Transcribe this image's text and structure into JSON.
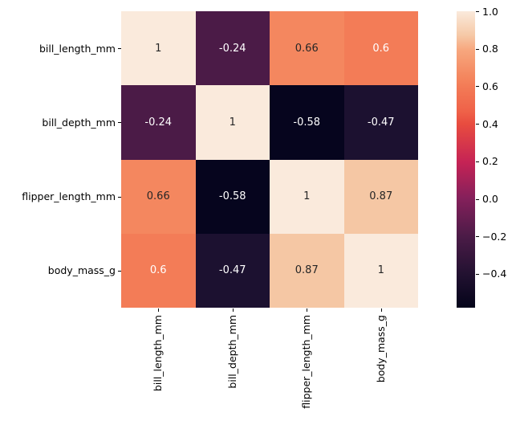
{
  "figure": {
    "background_color": "#ffffff",
    "title": ""
  },
  "chart_data": {
    "type": "heatmap",
    "title": "",
    "xlabel": "",
    "ylabel": "",
    "categories": [
      "bill_length_mm",
      "bill_depth_mm",
      "flipper_length_mm",
      "body_mass_g"
    ],
    "matrix": [
      [
        1,
        -0.24,
        0.66,
        0.6
      ],
      [
        -0.24,
        1,
        -0.58,
        -0.47
      ],
      [
        0.66,
        -0.58,
        1,
        0.87
      ],
      [
        0.6,
        -0.47,
        0.87,
        1
      ]
    ],
    "cell_labels": [
      [
        "1",
        "-0.24",
        "0.66",
        "0.6"
      ],
      [
        "-0.24",
        "1",
        "-0.58",
        "-0.47"
      ],
      [
        "0.66",
        "-0.58",
        "1",
        "0.87"
      ],
      [
        "0.6",
        "-0.47",
        "0.87",
        "1"
      ]
    ],
    "cell_colors": [
      [
        "#faeadc",
        "#4b1b47",
        "#f4875f",
        "#f37c57"
      ],
      [
        "#4b1b47",
        "#faeadc",
        "#06051e",
        "#1c1130"
      ],
      [
        "#f4875f",
        "#06051e",
        "#faeadc",
        "#f5c7a4"
      ],
      [
        "#f37c57",
        "#1c1130",
        "#f5c7a4",
        "#faeadc"
      ]
    ],
    "cell_text_colors": [
      [
        "#262626",
        "#ffffff",
        "#262626",
        "#ffffff"
      ],
      [
        "#ffffff",
        "#262626",
        "#ffffff",
        "#ffffff"
      ],
      [
        "#262626",
        "#ffffff",
        "#262626",
        "#262626"
      ],
      [
        "#ffffff",
        "#ffffff",
        "#262626",
        "#262626"
      ]
    ],
    "colormap": "rocket",
    "vmin": -0.58,
    "vmax": 1.0,
    "grid": false,
    "legend_position": "right-colorbar",
    "colorbar": {
      "ticks": [
        {
          "label": "1.0",
          "value": 1.0
        },
        {
          "label": "0.8",
          "value": 0.8
        },
        {
          "label": "0.6",
          "value": 0.6
        },
        {
          "label": "0.4",
          "value": 0.4
        },
        {
          "label": "0.2",
          "value": 0.2
        },
        {
          "label": "0.0",
          "value": 0.0
        },
        {
          "label": "−0.2",
          "value": -0.2
        },
        {
          "label": "−0.4",
          "value": -0.4
        }
      ],
      "gradient_stops": [
        {
          "pos": 0,
          "color": "#faeadc"
        },
        {
          "pos": 8,
          "color": "#f6c9a7"
        },
        {
          "pos": 13,
          "color": "#f7a77e"
        },
        {
          "pos": 22,
          "color": "#f4875f"
        },
        {
          "pos": 25,
          "color": "#f37c57"
        },
        {
          "pos": 34,
          "color": "#ef6148"
        },
        {
          "pos": 38,
          "color": "#e84c3f"
        },
        {
          "pos": 51,
          "color": "#c52355"
        },
        {
          "pos": 63,
          "color": "#85205b"
        },
        {
          "pos": 76,
          "color": "#4b1b47"
        },
        {
          "pos": 89,
          "color": "#211130"
        },
        {
          "pos": 100,
          "color": "#04041a"
        }
      ]
    }
  }
}
